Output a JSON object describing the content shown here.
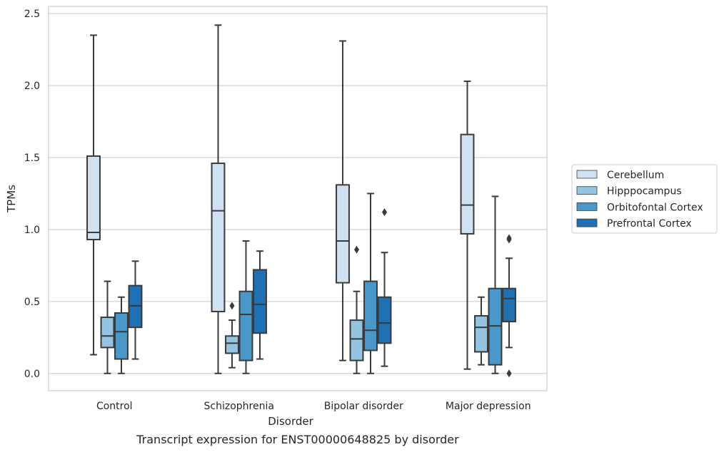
{
  "chart_data": {
    "type": "box",
    "caption": "Transcript expression for ENST00000648825 by disorder",
    "xlabel": "Disorder",
    "ylabel": "TPMs",
    "ylim": [
      -0.12,
      2.55
    ],
    "yticks": [
      0.0,
      0.5,
      1.0,
      1.5,
      2.0,
      2.5
    ],
    "ytick_labels": [
      "0.0",
      "0.5",
      "1.0",
      "1.5",
      "2.0",
      "2.5"
    ],
    "grid": "horizontal",
    "legend_position": "right",
    "categories": [
      "Control",
      "Schizophrenia",
      "Bipolar disorder",
      "Major depression"
    ],
    "series": [
      {
        "name": "Cerebellum",
        "color": "#d0e1f2",
        "boxes": [
          {
            "whisker_low": 0.13,
            "q1": 0.93,
            "median": 0.98,
            "q3": 1.51,
            "whisker_high": 2.35,
            "outliers": []
          },
          {
            "whisker_low": 0.0,
            "q1": 0.43,
            "median": 1.13,
            "q3": 1.46,
            "whisker_high": 2.42,
            "outliers": []
          },
          {
            "whisker_low": 0.09,
            "q1": 0.63,
            "median": 0.92,
            "q3": 1.31,
            "whisker_high": 2.31,
            "outliers": []
          },
          {
            "whisker_low": 0.03,
            "q1": 0.97,
            "median": 1.17,
            "q3": 1.66,
            "whisker_high": 2.03,
            "outliers": []
          }
        ]
      },
      {
        "name": "Hipppocampus",
        "color": "#94c4df",
        "boxes": [
          {
            "whisker_low": 0.0,
            "q1": 0.18,
            "median": 0.26,
            "q3": 0.39,
            "whisker_high": 0.64,
            "outliers": []
          },
          {
            "whisker_low": 0.04,
            "q1": 0.14,
            "median": 0.21,
            "q3": 0.26,
            "whisker_high": 0.37,
            "outliers": [
              0.47
            ]
          },
          {
            "whisker_low": 0.0,
            "q1": 0.09,
            "median": 0.24,
            "q3": 0.37,
            "whisker_high": 0.57,
            "outliers": [
              0.86
            ]
          },
          {
            "whisker_low": 0.06,
            "q1": 0.15,
            "median": 0.32,
            "q3": 0.4,
            "whisker_high": 0.53,
            "outliers": []
          }
        ]
      },
      {
        "name": "Orbitofontal Cortex",
        "color": "#4a98c9",
        "boxes": [
          {
            "whisker_low": 0.0,
            "q1": 0.1,
            "median": 0.29,
            "q3": 0.42,
            "whisker_high": 0.53,
            "outliers": []
          },
          {
            "whisker_low": 0.0,
            "q1": 0.09,
            "median": 0.41,
            "q3": 0.57,
            "whisker_high": 0.92,
            "outliers": []
          },
          {
            "whisker_low": 0.0,
            "q1": 0.16,
            "median": 0.3,
            "q3": 0.64,
            "whisker_high": 1.25,
            "outliers": []
          },
          {
            "whisker_low": 0.0,
            "q1": 0.06,
            "median": 0.33,
            "q3": 0.59,
            "whisker_high": 1.23,
            "outliers": []
          }
        ]
      },
      {
        "name": "Prefrontal Cortex",
        "color": "#2070b4",
        "boxes": [
          {
            "whisker_low": 0.1,
            "q1": 0.32,
            "median": 0.47,
            "q3": 0.61,
            "whisker_high": 0.78,
            "outliers": []
          },
          {
            "whisker_low": 0.1,
            "q1": 0.28,
            "median": 0.48,
            "q3": 0.72,
            "whisker_high": 0.85,
            "outliers": []
          },
          {
            "whisker_low": 0.05,
            "q1": 0.21,
            "median": 0.35,
            "q3": 0.53,
            "whisker_high": 0.84,
            "outliers": [
              1.12
            ]
          },
          {
            "whisker_low": 0.18,
            "q1": 0.36,
            "median": 0.52,
            "q3": 0.59,
            "whisker_high": 0.8,
            "outliers": [
              0.93,
              0.94,
              0.0
            ]
          }
        ]
      }
    ]
  }
}
